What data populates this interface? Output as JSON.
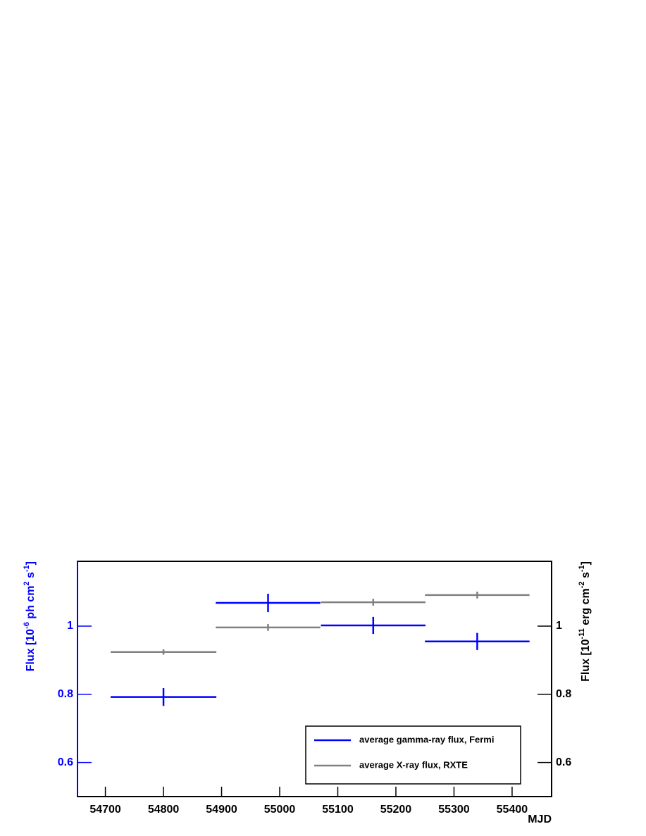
{
  "chart_data": {
    "type": "errorbar",
    "x_label": "MJD",
    "y_label": [
      "Flux [10",
      "-6",
      " ph cm",
      "2",
      " s",
      "-1",
      "]"
    ],
    "y2_label": [
      "Flux [10",
      "-11",
      " erg cm",
      "-2",
      " s",
      "-1",
      "]"
    ],
    "xlim": [
      54652,
      55468
    ],
    "xticks": [
      54700,
      54800,
      54900,
      55000,
      55100,
      55200,
      55300,
      55400
    ],
    "ylim": [
      0.5,
      1.19
    ],
    "yticks": [
      0.6,
      0.8,
      1
    ],
    "y2lim": [
      0.5,
      1.19
    ],
    "y2ticks": [
      0.6,
      0.8,
      1
    ],
    "y_color": "#0000ff",
    "legend": "bottom right",
    "series": [
      {
        "name": "average gamma-ray flux, Fermi",
        "color": "#0000ff",
        "x": [
          54800,
          54980,
          55161,
          55340
        ],
        "xerr": [
          91,
          90,
          90,
          90
        ],
        "values": [
          0.792,
          1.068,
          1.002,
          0.955
        ],
        "yerr": [
          0.026,
          0.027,
          0.025,
          0.025
        ]
      },
      {
        "name": "average X-ray flux, RXTE",
        "color": "#808080",
        "axis": "y2",
        "x": [
          54800,
          54980,
          55161,
          55340
        ],
        "xerr": [
          91,
          90,
          90,
          90
        ],
        "values": [
          0.924,
          0.996,
          1.07,
          1.091
        ],
        "yerr": [
          0.008,
          0.01,
          0.01,
          0.01
        ]
      }
    ]
  }
}
